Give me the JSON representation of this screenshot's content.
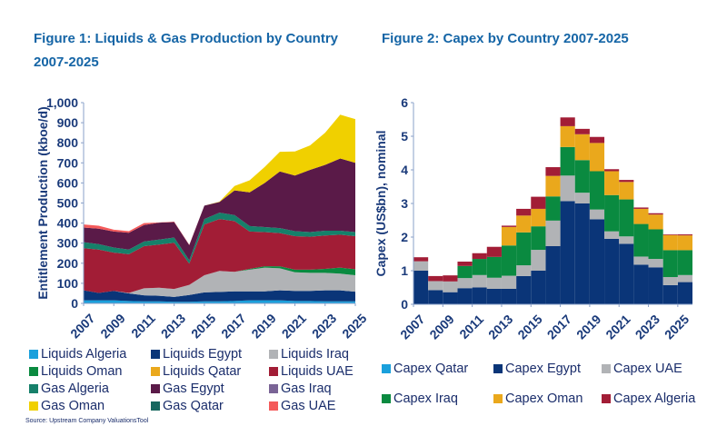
{
  "figures": {
    "fig1_title": "Figure 1: Liquids & Gas Production by Country 2007-2025",
    "fig2_title": "Figure 2: Capex by Country 2007-2025",
    "source": "Source:  Upstream Company  ValuationsTool"
  },
  "chart_data": [
    {
      "type": "area",
      "stacked": true,
      "title": "Figure 1: Liquids & Gas Production by Country 2007-2025",
      "ylabel": "Entitlement Production (kboe/d)",
      "xlabel": "",
      "ylim": [
        0,
        1000
      ],
      "yticks": [
        "0",
        "100",
        "200",
        "300",
        "400",
        "500",
        "600",
        "700",
        "800",
        "900",
        "1,000"
      ],
      "xticks": [
        "2007",
        "2009",
        "2011",
        "2013",
        "2015",
        "2017",
        "2019",
        "2021",
        "2023",
        "2025"
      ],
      "grid": false,
      "legend": "bottom",
      "x": [
        2007,
        2008,
        2009,
        2010,
        2011,
        2012,
        2013,
        2014,
        2015,
        2016,
        2017,
        2018,
        2019,
        2020,
        2021,
        2022,
        2023,
        2024,
        2025
      ],
      "series": [
        {
          "name": "Liquids Algeria",
          "color": "#1aa0dc",
          "values": [
            15,
            15,
            15,
            12,
            10,
            10,
            8,
            8,
            10,
            10,
            12,
            15,
            15,
            15,
            12,
            12,
            10,
            10,
            10
          ]
        },
        {
          "name": "Liquids Egypt",
          "color": "#0a3578",
          "values": [
            50,
            37,
            47,
            38,
            30,
            28,
            24,
            34,
            45,
            47,
            48,
            45,
            45,
            50,
            50,
            50,
            55,
            55,
            48
          ]
        },
        {
          "name": "Liquids Iraq",
          "color": "#b1b3b6",
          "values": [
            0,
            0,
            0,
            2,
            35,
            40,
            40,
            50,
            85,
            105,
            97,
            108,
            118,
            110,
            93,
            90,
            87,
            83,
            82
          ]
        },
        {
          "name": "Liquids Oman",
          "color": "#0a8a40",
          "values": [
            0,
            0,
            0,
            0,
            0,
            0,
            0,
            0,
            0,
            0,
            0,
            4,
            7,
            10,
            13,
            16,
            20,
            30,
            30
          ]
        },
        {
          "name": "Liquids Qatar",
          "color": "#eaa81c",
          "values": [
            0,
            0,
            0,
            0,
            0,
            0,
            0,
            0,
            0,
            0,
            0,
            0,
            0,
            0,
            0,
            0,
            0,
            0,
            0
          ]
        },
        {
          "name": "Liquids UAE",
          "color": "#a21d36",
          "values": [
            210,
            216,
            191,
            193,
            210,
            215,
            230,
            106,
            253,
            258,
            253,
            186,
            170,
            165,
            167,
            164,
            166,
            164,
            165
          ]
        },
        {
          "name": "Gas Algeria",
          "color": "#16806a",
          "values": [
            30,
            27,
            25,
            23,
            23,
            25,
            26,
            17,
            27,
            32,
            30,
            27,
            25,
            25,
            25,
            23,
            24,
            20,
            20
          ]
        },
        {
          "name": "Gas Egypt",
          "color": "#5a1a48",
          "values": [
            73,
            77,
            80,
            84,
            82,
            84,
            77,
            75,
            67,
            53,
            123,
            168,
            220,
            282,
            277,
            310,
            328,
            360,
            345
          ]
        },
        {
          "name": "Gas Iraq",
          "color": "#7a6496",
          "values": [
            0,
            0,
            0,
            0,
            0,
            0,
            0,
            0,
            0,
            0,
            0,
            0,
            0,
            0,
            0,
            0,
            0,
            0,
            0
          ]
        },
        {
          "name": "Gas Oman",
          "color": "#f0d000",
          "values": [
            0,
            0,
            0,
            0,
            0,
            0,
            0,
            0,
            0,
            2,
            22,
            60,
            80,
            98,
            120,
            122,
            160,
            218,
            218
          ]
        },
        {
          "name": "Gas Qatar",
          "color": "#17675f",
          "values": [
            0,
            0,
            0,
            0,
            0,
            0,
            0,
            0,
            0,
            0,
            0,
            0,
            0,
            0,
            0,
            0,
            0,
            0,
            0
          ]
        },
        {
          "name": "Gas UAE",
          "color": "#f45a5a",
          "values": [
            15,
            15,
            9,
            8,
            10,
            1,
            2,
            2,
            0,
            0,
            0,
            0,
            0,
            0,
            0,
            0,
            0,
            0,
            0
          ]
        }
      ]
    },
    {
      "type": "bar",
      "stacked": true,
      "title": "Figure 2: Capex by Country 2007-2025",
      "ylabel": "Capex (US$bn), nominal",
      "xlabel": "",
      "ylim": [
        0,
        6
      ],
      "yticks": [
        "0",
        "1",
        "2",
        "3",
        "4",
        "5",
        "6"
      ],
      "xticks": [
        "2007",
        "2009",
        "2011",
        "2013",
        "2015",
        "2017",
        "2019",
        "2021",
        "2023",
        "2025"
      ],
      "grid": false,
      "legend": "bottom",
      "categories": [
        2007,
        2008,
        2009,
        2010,
        2011,
        2012,
        2013,
        2014,
        2015,
        2016,
        2017,
        2018,
        2019,
        2020,
        2021,
        2022,
        2023,
        2024,
        2025
      ],
      "series": [
        {
          "name": "Capex Qatar",
          "color": "#1aa0dc",
          "values": [
            0,
            0,
            0,
            0,
            0,
            0,
            0,
            0,
            0,
            0,
            0,
            0,
            0,
            0,
            0,
            0,
            0,
            0,
            0
          ]
        },
        {
          "name": "Capex Egypt",
          "color": "#0a3578",
          "values": [
            1.0,
            0.42,
            0.36,
            0.48,
            0.5,
            0.46,
            0.46,
            0.84,
            1.0,
            1.73,
            3.07,
            3.0,
            2.53,
            1.95,
            1.8,
            1.18,
            1.1,
            0.57,
            0.66
          ]
        },
        {
          "name": "Capex UAE",
          "color": "#b1b3b6",
          "values": [
            0.28,
            0.27,
            0.32,
            0.3,
            0.37,
            0.33,
            0.39,
            0.32,
            0.62,
            0.76,
            0.76,
            0.32,
            0.29,
            0.22,
            0.22,
            0.24,
            0.25,
            0.24,
            0.21
          ]
        },
        {
          "name": "Capex Iraq",
          "color": "#0a8a40",
          "values": [
            0,
            0,
            0,
            0.36,
            0.48,
            0.62,
            0.9,
            0.98,
            0.7,
            0.72,
            0.85,
            0.97,
            1.14,
            1.08,
            1.1,
            0.97,
            0.88,
            0.8,
            0.74
          ]
        },
        {
          "name": "Capex Oman",
          "color": "#eaa81c",
          "values": [
            0,
            0,
            0,
            0,
            0,
            0,
            0.55,
            0.5,
            0.52,
            0.61,
            0.62,
            0.77,
            0.84,
            0.71,
            0.52,
            0.45,
            0.44,
            0.45,
            0.44
          ]
        },
        {
          "name": "Capex Algeria",
          "color": "#a21d36",
          "values": [
            0.12,
            0.15,
            0.18,
            0.13,
            0.17,
            0.3,
            0.04,
            0.2,
            0.36,
            0.26,
            0.26,
            0.16,
            0.18,
            0.06,
            0.06,
            0.04,
            0.04,
            0.02,
            0.03
          ]
        }
      ]
    }
  ]
}
